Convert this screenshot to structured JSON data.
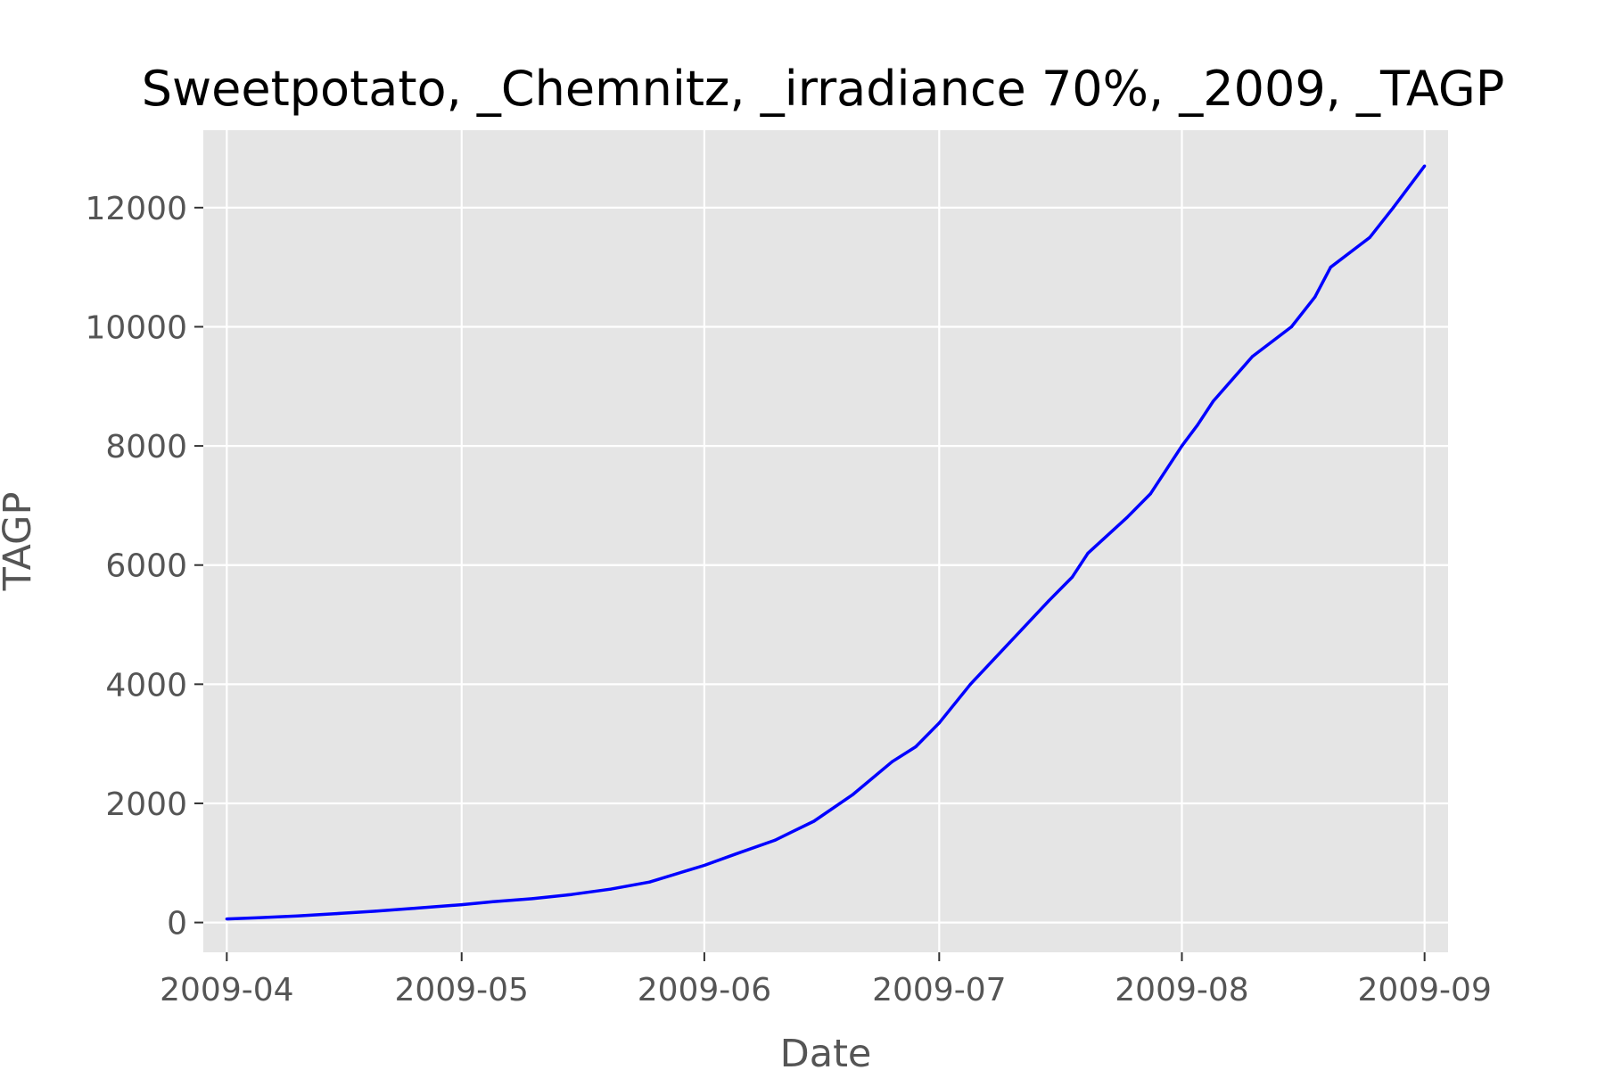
{
  "chart_data": {
    "type": "line",
    "title": "Sweetpotato, _Chemnitz, _irradiance 70%, _2009, _TAGP",
    "xlabel": "Date",
    "ylabel": "TAGP",
    "x_ticks": [
      "2009-04",
      "2009-05",
      "2009-06",
      "2009-07",
      "2009-08",
      "2009-09"
    ],
    "y_ticks": [
      0,
      2000,
      4000,
      6000,
      8000,
      10000,
      12000
    ],
    "xlim": [
      "2009-03-29",
      "2009-09-04"
    ],
    "ylim": [
      -500,
      13300
    ],
    "grid": true,
    "style": {
      "panel_background": "#e5e5e5",
      "grid_color": "#ffffff",
      "line_color": "#0000ff"
    },
    "series": [
      {
        "x": [
          "2009-04-01",
          "2009-04-05",
          "2009-04-10",
          "2009-04-15",
          "2009-04-20",
          "2009-04-25",
          "2009-05-01",
          "2009-05-05",
          "2009-05-10",
          "2009-05-15",
          "2009-05-20",
          "2009-05-25",
          "2009-05-30",
          "2009-06-01",
          "2009-06-05",
          "2009-06-10",
          "2009-06-15",
          "2009-06-20",
          "2009-06-25",
          "2009-06-28",
          "2009-07-01",
          "2009-07-05",
          "2009-07-10",
          "2009-07-15",
          "2009-07-18",
          "2009-07-20",
          "2009-07-25",
          "2009-07-28",
          "2009-08-01",
          "2009-08-03",
          "2009-08-05",
          "2009-08-10",
          "2009-08-15",
          "2009-08-18",
          "2009-08-20",
          "2009-08-25",
          "2009-08-28",
          "2009-09-01"
        ],
        "values": [
          60,
          80,
          110,
          150,
          190,
          240,
          300,
          350,
          400,
          470,
          560,
          680,
          880,
          960,
          1150,
          1380,
          1700,
          2150,
          2700,
          2950,
          3350,
          4000,
          4700,
          5400,
          5800,
          6200,
          6800,
          7200,
          8000,
          8350,
          8750,
          9500,
          10000,
          10500,
          11000,
          11500,
          12000,
          12700
        ]
      }
    ]
  }
}
